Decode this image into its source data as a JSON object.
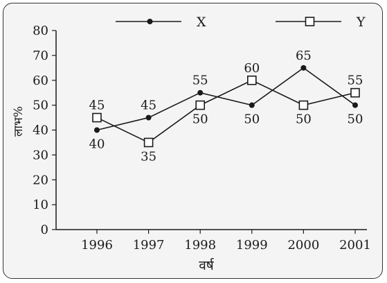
{
  "chart_data": {
    "type": "line",
    "title": "",
    "xlabel": "वर्ष",
    "ylabel": "लाभ%",
    "x": [
      "1996",
      "1997",
      "1998",
      "1999",
      "2000",
      "2001"
    ],
    "ylim": [
      0,
      80
    ],
    "yticks": [
      "0",
      "10",
      "20",
      "30",
      "40",
      "50",
      "60",
      "70",
      "80"
    ],
    "grid": false,
    "legend_position": "top",
    "series": [
      {
        "name": "X",
        "marker": "filled-circle",
        "color": "#1a1a1a",
        "values": [
          40,
          45,
          55,
          50,
          65,
          50
        ],
        "labels": [
          "40",
          "45",
          "55",
          "50",
          "65",
          "50"
        ]
      },
      {
        "name": "Y",
        "marker": "open-square",
        "color": "#1a1a1a",
        "values": [
          45,
          35,
          50,
          60,
          50,
          55
        ],
        "labels": [
          "45",
          "35",
          "50",
          "60",
          "50",
          "55"
        ]
      }
    ]
  }
}
